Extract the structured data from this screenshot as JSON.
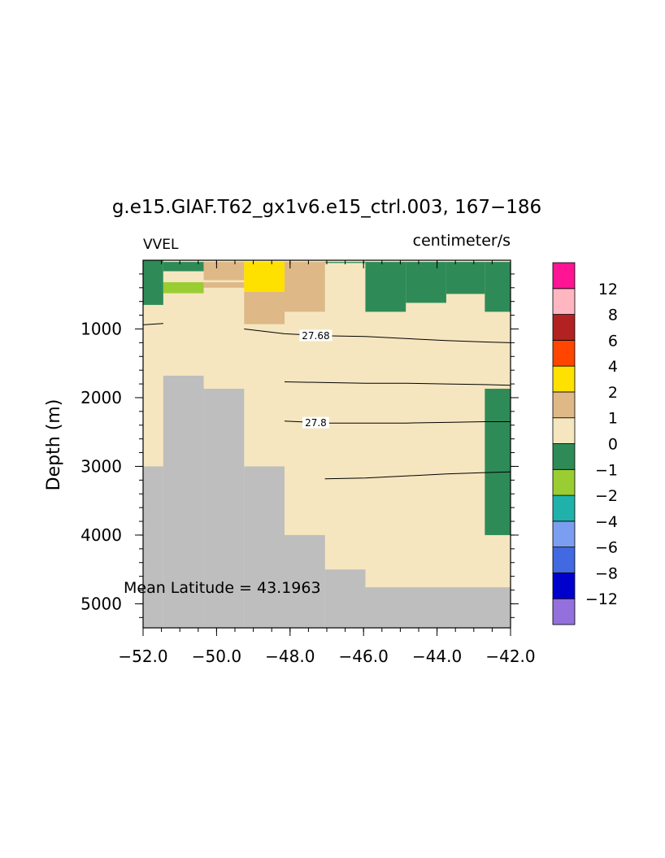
{
  "colors": {
    "land": "#bebebe",
    "levels": [
      "#9370db",
      "#0000cd",
      "#4169e1",
      "#7b9ef0",
      "#20b2aa",
      "#9acd32",
      "#2e8b57",
      "#f5e6c0",
      "#deb887",
      "#ffe100",
      "#ff4500",
      "#b22222",
      "#ffb6c1",
      "#ff1493"
    ]
  },
  "chart_data": {
    "type": "heatmap",
    "title": "g.e15.GIAF.T62_gx1v6.e15_ctrl.003, 167−186",
    "left_label": "VVEL",
    "right_label": "centimeter/s",
    "xlabel": "",
    "ylabel": "Depth (m)",
    "xlim": [
      -52,
      -42
    ],
    "ylim": [
      5350,
      0
    ],
    "x_ticks": [
      -52,
      -50,
      -48,
      -46,
      -44,
      -42
    ],
    "x_tick_labels": [
      "−52.0",
      "−50.0",
      "−48.0",
      "−46.0",
      "−44.0",
      "−42.0"
    ],
    "y_ticks": [
      1000,
      2000,
      3000,
      4000,
      5000
    ],
    "y_tick_labels": [
      "1000",
      "2000",
      "3000",
      "4000",
      "5000"
    ],
    "annotation": "Mean Latitude = 43.1963",
    "colorbar": {
      "levels": [
        "12",
        "8",
        "6",
        "4",
        "2",
        "1",
        "0",
        "−1",
        "−2",
        "−4",
        "−6",
        "−8",
        "−12"
      ]
    },
    "land": [
      {
        "x0": -52.0,
        "x1": -51.45,
        "y0": 3000,
        "y1": 5350
      },
      {
        "x0": -51.45,
        "x1": -50.35,
        "y0": 1680,
        "y1": 5350
      },
      {
        "x0": -50.35,
        "x1": -49.25,
        "y0": 1870,
        "y1": 5350
      },
      {
        "x0": -49.25,
        "x1": -48.15,
        "y0": 3000,
        "y1": 5350
      },
      {
        "x0": -48.15,
        "x1": -47.05,
        "y0": 4000,
        "y1": 5350
      },
      {
        "x0": -47.05,
        "x1": -45.95,
        "y0": 4500,
        "y1": 5350
      },
      {
        "x0": -45.95,
        "x1": -42.0,
        "y0": 4760,
        "y1": 5350
      }
    ],
    "cells": [
      {
        "x0": -52.0,
        "x1": -51.45,
        "y0": 0,
        "y1": 650,
        "level": 6
      },
      {
        "x0": -51.45,
        "x1": -50.35,
        "y0": 0,
        "y1": 160,
        "level": 6
      },
      {
        "x0": -51.45,
        "x1": -50.35,
        "y0": 160,
        "y1": 320,
        "level": 7
      },
      {
        "x0": -51.45,
        "x1": -50.35,
        "y0": 320,
        "y1": 480,
        "level": 5
      },
      {
        "x0": -50.35,
        "x1": -49.25,
        "y0": 0,
        "y1": 290,
        "level": 8
      },
      {
        "x0": -50.35,
        "x1": -49.25,
        "y0": 290,
        "y1": 320,
        "level": 7
      },
      {
        "x0": -50.35,
        "x1": -49.25,
        "y0": 320,
        "y1": 400,
        "level": 8
      },
      {
        "x0": -49.25,
        "x1": -48.15,
        "y0": 0,
        "y1": 460,
        "level": 9
      },
      {
        "x0": -49.25,
        "x1": -48.15,
        "y0": 460,
        "y1": 930,
        "level": 8
      },
      {
        "x0": -48.15,
        "x1": -47.05,
        "y0": 0,
        "y1": 750,
        "level": 8
      },
      {
        "x0": -47.05,
        "x1": -45.95,
        "y0": 0,
        "y1": 40,
        "level": 6
      },
      {
        "x0": -45.95,
        "x1": -44.85,
        "y0": 0,
        "y1": 750,
        "level": 6
      },
      {
        "x0": -44.85,
        "x1": -43.75,
        "y0": 0,
        "y1": 620,
        "level": 6
      },
      {
        "x0": -43.75,
        "x1": -42.7,
        "y0": 0,
        "y1": 490,
        "level": 6
      },
      {
        "x0": -42.7,
        "x1": -42.0,
        "y0": 0,
        "y1": 750,
        "level": 6
      },
      {
        "x0": -42.7,
        "x1": -42.0,
        "y0": 1870,
        "y1": 4000,
        "level": 6
      },
      {
        "x0": -51.45,
        "x1": -42.0,
        "y0": 0,
        "y1": 25,
        "level": 7
      }
    ],
    "contours": [
      {
        "label": "",
        "points": [
          [
            -52.0,
            940
          ],
          [
            -51.45,
            920
          ]
        ]
      },
      {
        "label": "27.68",
        "label_x": -47.3,
        "points": [
          [
            -49.25,
            1000
          ],
          [
            -48.15,
            1070
          ],
          [
            -47.05,
            1100
          ],
          [
            -45.95,
            1110
          ],
          [
            -44.85,
            1140
          ],
          [
            -43.75,
            1170
          ],
          [
            -42.7,
            1190
          ],
          [
            -42.0,
            1200
          ]
        ]
      },
      {
        "label": "",
        "points": [
          [
            -48.15,
            1770
          ],
          [
            -47.05,
            1780
          ],
          [
            -45.95,
            1790
          ],
          [
            -44.85,
            1790
          ],
          [
            -43.75,
            1800
          ],
          [
            -42.7,
            1810
          ],
          [
            -42.0,
            1820
          ]
        ]
      },
      {
        "label": "27.8",
        "label_x": -47.3,
        "points": [
          [
            -48.15,
            2340
          ],
          [
            -47.05,
            2370
          ],
          [
            -45.95,
            2370
          ],
          [
            -44.85,
            2370
          ],
          [
            -43.75,
            2360
          ],
          [
            -42.7,
            2350
          ],
          [
            -42.0,
            2350
          ]
        ]
      },
      {
        "label": "",
        "points": [
          [
            -47.05,
            3180
          ],
          [
            -45.95,
            3170
          ],
          [
            -44.85,
            3140
          ],
          [
            -43.75,
            3110
          ],
          [
            -42.7,
            3090
          ],
          [
            -42.0,
            3080
          ]
        ]
      }
    ]
  }
}
